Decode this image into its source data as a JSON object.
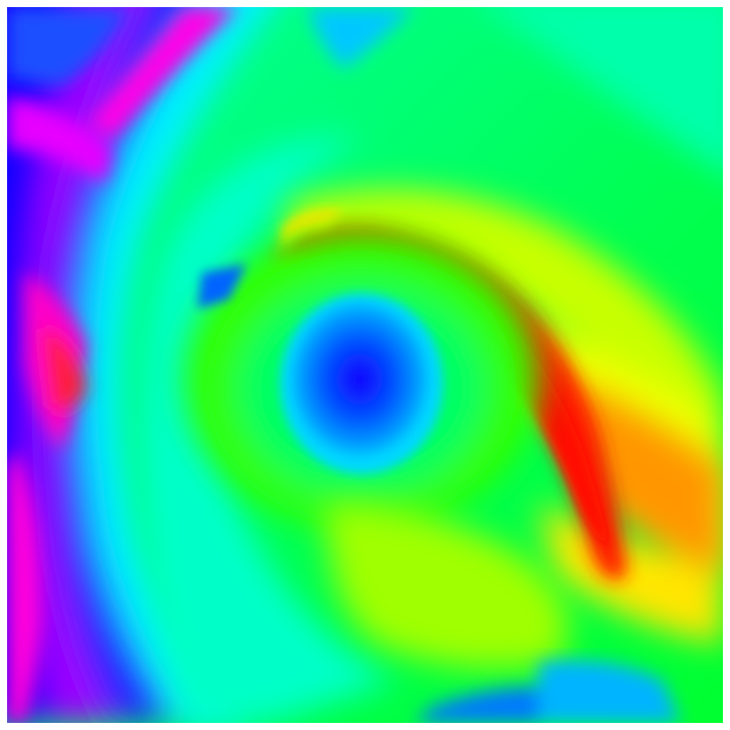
{
  "image": {
    "description_type": "false-color hue field",
    "background_color": "#ffffff",
    "palette": {
      "blue": "#1400ff",
      "magenta": "#ff00e6",
      "red": "#ff1e00",
      "orange": "#ff9600",
      "yellow": "#f0ff00",
      "green": "#00ff3c",
      "cyan": "#00f0ff",
      "light_blue": "#0096ff",
      "mint": "#00ffa0"
    }
  }
}
